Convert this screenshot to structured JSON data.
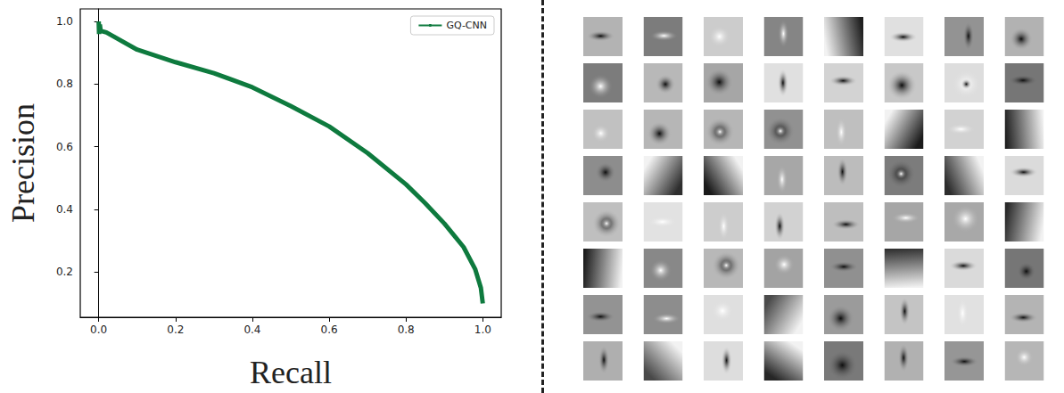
{
  "chart_data": {
    "type": "line",
    "x_label": "Recall",
    "y_label": "Precision",
    "xlim": [
      -0.048,
      1.048
    ],
    "ylim": [
      0.056,
      1.04
    ],
    "xticks": [
      {
        "value": 0,
        "label": "0.0"
      },
      {
        "value": 0.2,
        "label": "0.2"
      },
      {
        "value": 0.4,
        "label": "0.4"
      },
      {
        "value": 0.6,
        "label": "0.6"
      },
      {
        "value": 0.8,
        "label": "0.8"
      },
      {
        "value": 1,
        "label": "1.0"
      }
    ],
    "yticks": [
      {
        "value": 0.2,
        "label": "0.2"
      },
      {
        "value": 0.4,
        "label": "0.4"
      },
      {
        "value": 0.6,
        "label": "0.6"
      },
      {
        "value": 0.8,
        "label": "0.8"
      },
      {
        "value": 1,
        "label": "1.0"
      }
    ],
    "x": [
      0,
      0.001,
      0.003,
      0.005,
      0.02,
      0.1,
      0.2,
      0.3,
      0.4,
      0.5,
      0.6,
      0.7,
      0.8,
      0.85,
      0.9,
      0.95,
      0.98,
      0.995,
      1.0
    ],
    "series": [
      {
        "name": "GQ-CNN",
        "color": "#0e7a3e",
        "values": [
          1.0,
          0.96,
          0.99,
          0.97,
          0.965,
          0.91,
          0.87,
          0.835,
          0.79,
          0.73,
          0.665,
          0.58,
          0.48,
          0.42,
          0.355,
          0.28,
          0.21,
          0.15,
          0.1
        ]
      }
    ],
    "legend": "upper right",
    "grid": false
  }
}
